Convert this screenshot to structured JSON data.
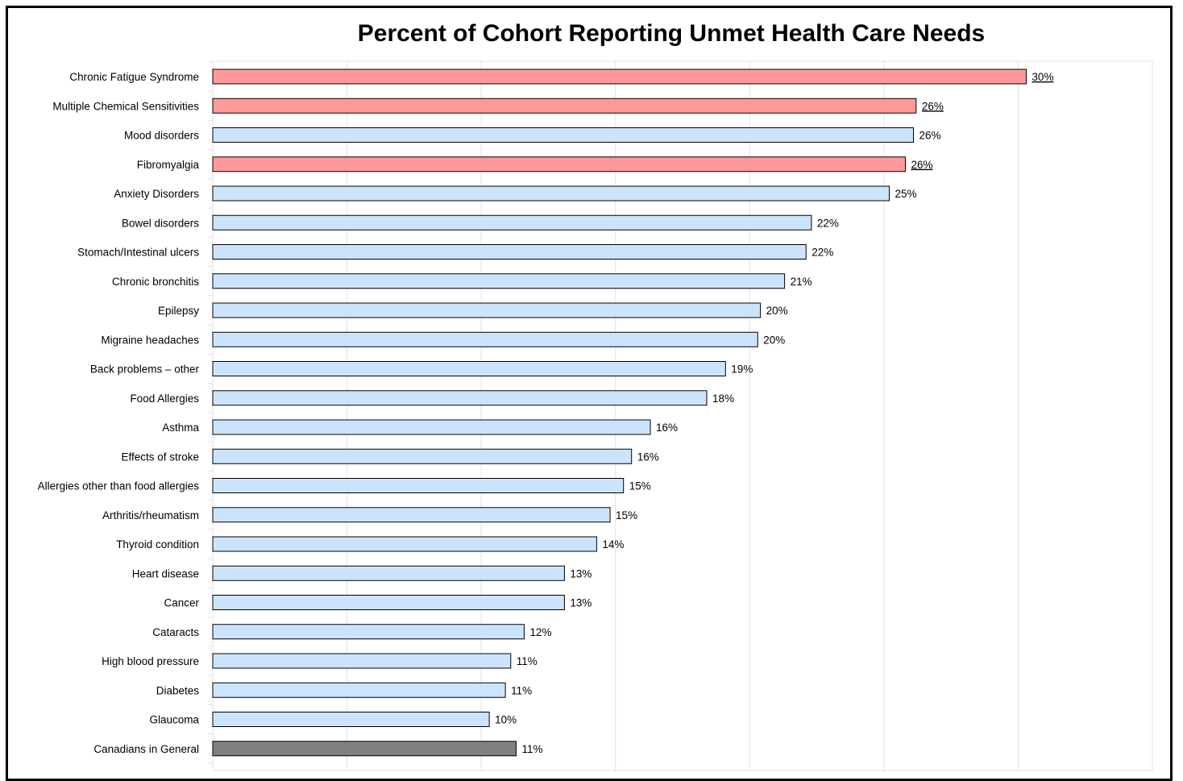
{
  "chart_data": {
    "type": "bar",
    "orientation": "horizontal",
    "title": "Percent of Cohort Reporting Unmet Health Care Needs",
    "xlim": [
      0,
      35
    ],
    "grid": true,
    "categories": [
      "Chronic Fatigue Syndrome",
      "Multiple Chemical Sensitivities",
      "Mood disorders",
      "Fibromyalgia",
      "Anxiety Disorders",
      "Bowel disorders",
      "Stomach/Intestinal ulcers",
      "Chronic bronchitis",
      "Epilepsy",
      "Migraine headaches",
      "Back problems – other",
      "Food Allergies",
      "Asthma",
      "Effects of stroke",
      "Allergies other than food allergies",
      "Arthritis/rheumatism",
      "Thyroid condition",
      "Heart disease",
      "Cancer",
      "Cataracts",
      "High blood pressure",
      "Diabetes",
      "Glaucoma",
      "Canadians in General"
    ],
    "values": [
      30.3,
      26.2,
      26.1,
      25.8,
      25.2,
      22.3,
      22.1,
      21.3,
      20.4,
      20.3,
      19.1,
      18.4,
      16.3,
      15.6,
      15.3,
      14.8,
      14.3,
      13.1,
      13.1,
      11.6,
      11.1,
      10.9,
      10.3,
      11.3
    ],
    "labels": [
      "30%",
      "26%",
      "26%",
      "26%",
      "25%",
      "22%",
      "22%",
      "21%",
      "20%",
      "20%",
      "19%",
      "18%",
      "16%",
      "16%",
      "15%",
      "15%",
      "14%",
      "13%",
      "13%",
      "12%",
      "11%",
      "11%",
      "10%",
      "11%"
    ],
    "underlined_labels": [
      0,
      1,
      3
    ],
    "highlight_indices": [
      0,
      1,
      3
    ],
    "baseline_indices": [
      23
    ],
    "colors": {
      "default": "#cce4fb",
      "highlight": "#ff9999",
      "baseline": "#808080",
      "grid": "#e2e2e2",
      "outline": "#000000"
    }
  }
}
